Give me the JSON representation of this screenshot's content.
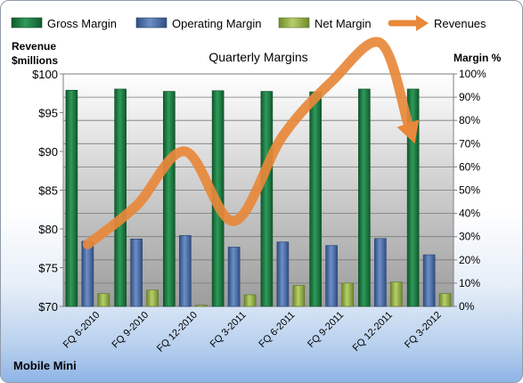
{
  "chart_data": {
    "type": "bar",
    "title": "Quarterly Margins",
    "company": "Mobile Mini",
    "left_axis_label": [
      "Revenue",
      "$millions"
    ],
    "right_axis_label": "Margin %",
    "categories": [
      "FQ 6-2010",
      "FQ 9-2010",
      "FQ 12-2010",
      "FQ 3-2011",
      "FQ 6-2011",
      "FQ 9-2011",
      "FQ 12-2011",
      "FQ 3-2012"
    ],
    "left_ticks": [
      "$70",
      "$75",
      "$80",
      "$85",
      "$90",
      "$95",
      "$100"
    ],
    "right_ticks": [
      "0%",
      "10%",
      "20%",
      "30%",
      "40%",
      "50%",
      "60%",
      "70%",
      "80%",
      "90%",
      "100%"
    ],
    "ylim_left": [
      70,
      100
    ],
    "ylim_right": [
      0,
      100
    ],
    "grid": true,
    "legend_position": "top",
    "series": [
      {
        "name": "Gross Margin",
        "axis": "right",
        "color": "#1f7a45",
        "values": [
          93,
          93.5,
          92.5,
          92.8,
          92.5,
          92.3,
          93.5,
          93.5
        ]
      },
      {
        "name": "Operating Margin",
        "axis": "right",
        "color": "#4f6fa8",
        "values": [
          28,
          29,
          30.5,
          25.5,
          27.7,
          26.2,
          29.2,
          22.2
        ]
      },
      {
        "name": "Net Margin",
        "axis": "right",
        "color": "#8faa45",
        "values": [
          5.5,
          7,
          0.5,
          5,
          9,
          10,
          10.5,
          5.5
        ]
      },
      {
        "name": "Revenues",
        "axis": "left",
        "type": "line",
        "color": "#e8883a",
        "values": [
          78,
          83,
          90,
          81,
          92,
          99,
          104,
          91
        ]
      }
    ]
  }
}
